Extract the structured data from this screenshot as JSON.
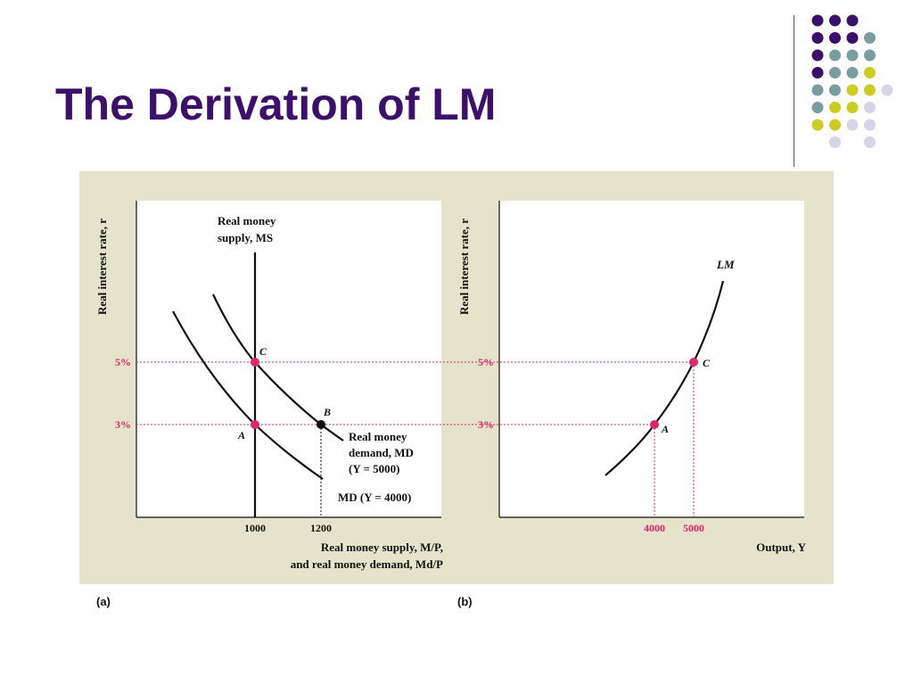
{
  "slide": {
    "title": "The Derivation of LM"
  },
  "decor": {
    "dot_colors": [
      "#3b0f6b",
      "#7a9e9f",
      "#cccc22",
      "#d6d4e6"
    ]
  },
  "panels": {
    "a_label": "(a)",
    "b_label": "(b)"
  },
  "chart_data": [
    {
      "type": "line",
      "panel": "(a)",
      "ylabel": "Real interest rate, r",
      "xlabel_line1": "Real money supply, M/P,",
      "xlabel_line2": "and real money demand, Md/P",
      "x_ticks": [
        "1000",
        "1200"
      ],
      "y_ticks": [
        "5%",
        "3%"
      ],
      "series": [
        {
          "name": "Real money supply, MS",
          "points": [
            [
              1000,
              1.5
            ],
            [
              1000,
              10.0
            ]
          ]
        },
        {
          "name": "Real money demand, MD (Y = 5000)",
          "points": [
            [
              906,
              8.0
            ],
            [
              1000,
              5.0
            ],
            [
              1200,
              3.0
            ],
            [
              1270,
              2.2
            ]
          ]
        },
        {
          "name": "MD (Y = 4000)",
          "points": [
            [
              784,
              7.5
            ],
            [
              1000,
              3.0
            ],
            [
              1205,
              0.6
            ]
          ]
        }
      ],
      "labels": {
        "ms_line1": "Real money",
        "ms_line2": "supply, MS",
        "md5_line1": "Real money",
        "md5_line2": "demand, MD",
        "md5_line3": "(Y = 5000)",
        "md4": "MD (Y = 4000)"
      },
      "points": [
        {
          "label": "C",
          "x": 1000,
          "y": 5,
          "color": "#e0246e"
        },
        {
          "label": "A",
          "x": 1000,
          "y": 3,
          "color": "#e0246e"
        },
        {
          "label": "B",
          "x": 1200,
          "y": 3,
          "color": "#111111"
        }
      ]
    },
    {
      "type": "line",
      "panel": "(b)",
      "ylabel": "Real interest rate, r",
      "xlabel": "Output, Y",
      "x_ticks": [
        "4000",
        "5000"
      ],
      "y_ticks": [
        "5%",
        "3%"
      ],
      "series": [
        {
          "name": "LM",
          "points": [
            [
              3000,
              0.0
            ],
            [
              4000,
              3.0
            ],
            [
              5000,
              5.0
            ],
            [
              5700,
              8.4
            ]
          ]
        }
      ],
      "points": [
        {
          "label": "A",
          "x": 4000,
          "y": 3,
          "color": "#e0246e"
        },
        {
          "label": "C",
          "x": 5000,
          "y": 5,
          "color": "#e0246e"
        }
      ]
    }
  ]
}
